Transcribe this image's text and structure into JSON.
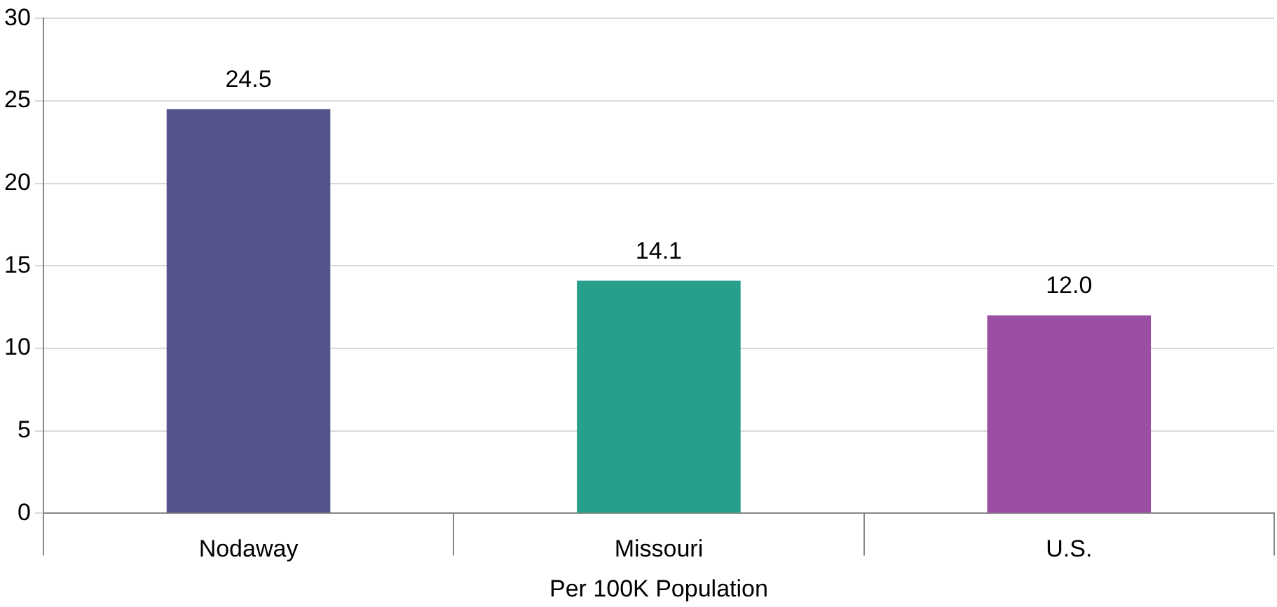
{
  "chart_data": {
    "type": "bar",
    "xlabel": "Per 100K Population",
    "categories": [
      "Nodaway",
      "Missouri",
      "U.S."
    ],
    "values": [
      24.5,
      14.1,
      12.0
    ],
    "value_labels": [
      "24.5",
      "14.1",
      "12.0"
    ],
    "colors": [
      "#55548a",
      "#26a08a",
      "#9b4fa3"
    ],
    "ylim": [
      0,
      30
    ],
    "yticks": [
      0,
      5,
      10,
      15,
      20,
      25,
      30
    ],
    "grid": "y",
    "legend": false
  }
}
